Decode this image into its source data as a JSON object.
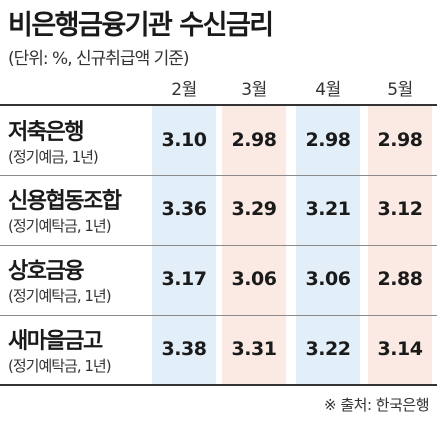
{
  "chart_data": {
    "type": "table",
    "title": "비은행금융기관 수신금리",
    "subtitle": "(단위: %, 신규취급액 기준)",
    "columns": [
      "2월",
      "3월",
      "4월",
      "5월"
    ],
    "rows": [
      {
        "name": "저축은행",
        "sub": "(정기예금, 1년)",
        "values": [
          "3.10",
          "2.98",
          "2.98",
          "2.98"
        ]
      },
      {
        "name": "신용협동조합",
        "sub": "(정기예탁금, 1년)",
        "values": [
          "3.36",
          "3.29",
          "3.21",
          "3.12"
        ]
      },
      {
        "name": "상호금융",
        "sub": "(정기예탁금, 1년)",
        "values": [
          "3.17",
          "3.06",
          "3.06",
          "2.88"
        ]
      },
      {
        "name": "새마을금고",
        "sub": "(정기예탁금, 1년)",
        "values": [
          "3.38",
          "3.31",
          "3.22",
          "3.14"
        ]
      }
    ],
    "source": "※ 출처: 한국은행",
    "column_colors": [
      "#e3eff8",
      "#fbe9e3",
      "#e3eff8",
      "#fbe9e3"
    ],
    "line_color": "#333333"
  }
}
